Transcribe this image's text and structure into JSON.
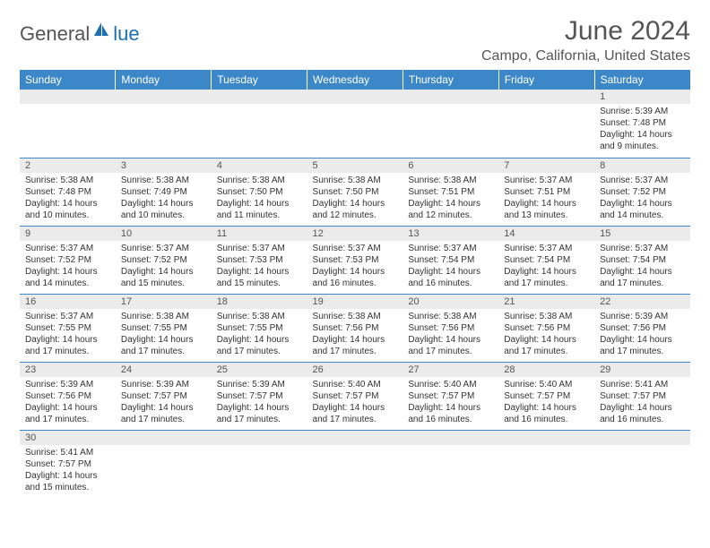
{
  "logo": {
    "part1": "General",
    "part2": "lue"
  },
  "title": "June 2024",
  "location": "Campo, California, United States",
  "colors": {
    "header_bg": "#3b87c8",
    "header_fg": "#ffffff",
    "daynum_bg": "#ebebeb",
    "text": "#333333",
    "border": "#3b87c8",
    "logo_blue": "#1a6fb5",
    "logo_gray": "#555555"
  },
  "daynames": [
    "Sunday",
    "Monday",
    "Tuesday",
    "Wednesday",
    "Thursday",
    "Friday",
    "Saturday"
  ],
  "weeks": [
    [
      {
        "n": "",
        "sr": "",
        "ss": "",
        "dl": ""
      },
      {
        "n": "",
        "sr": "",
        "ss": "",
        "dl": ""
      },
      {
        "n": "",
        "sr": "",
        "ss": "",
        "dl": ""
      },
      {
        "n": "",
        "sr": "",
        "ss": "",
        "dl": ""
      },
      {
        "n": "",
        "sr": "",
        "ss": "",
        "dl": ""
      },
      {
        "n": "",
        "sr": "",
        "ss": "",
        "dl": ""
      },
      {
        "n": "1",
        "sr": "Sunrise: 5:39 AM",
        "ss": "Sunset: 7:48 PM",
        "dl": "Daylight: 14 hours and 9 minutes."
      }
    ],
    [
      {
        "n": "2",
        "sr": "Sunrise: 5:38 AM",
        "ss": "Sunset: 7:48 PM",
        "dl": "Daylight: 14 hours and 10 minutes."
      },
      {
        "n": "3",
        "sr": "Sunrise: 5:38 AM",
        "ss": "Sunset: 7:49 PM",
        "dl": "Daylight: 14 hours and 10 minutes."
      },
      {
        "n": "4",
        "sr": "Sunrise: 5:38 AM",
        "ss": "Sunset: 7:50 PM",
        "dl": "Daylight: 14 hours and 11 minutes."
      },
      {
        "n": "5",
        "sr": "Sunrise: 5:38 AM",
        "ss": "Sunset: 7:50 PM",
        "dl": "Daylight: 14 hours and 12 minutes."
      },
      {
        "n": "6",
        "sr": "Sunrise: 5:38 AM",
        "ss": "Sunset: 7:51 PM",
        "dl": "Daylight: 14 hours and 12 minutes."
      },
      {
        "n": "7",
        "sr": "Sunrise: 5:37 AM",
        "ss": "Sunset: 7:51 PM",
        "dl": "Daylight: 14 hours and 13 minutes."
      },
      {
        "n": "8",
        "sr": "Sunrise: 5:37 AM",
        "ss": "Sunset: 7:52 PM",
        "dl": "Daylight: 14 hours and 14 minutes."
      }
    ],
    [
      {
        "n": "9",
        "sr": "Sunrise: 5:37 AM",
        "ss": "Sunset: 7:52 PM",
        "dl": "Daylight: 14 hours and 14 minutes."
      },
      {
        "n": "10",
        "sr": "Sunrise: 5:37 AM",
        "ss": "Sunset: 7:52 PM",
        "dl": "Daylight: 14 hours and 15 minutes."
      },
      {
        "n": "11",
        "sr": "Sunrise: 5:37 AM",
        "ss": "Sunset: 7:53 PM",
        "dl": "Daylight: 14 hours and 15 minutes."
      },
      {
        "n": "12",
        "sr": "Sunrise: 5:37 AM",
        "ss": "Sunset: 7:53 PM",
        "dl": "Daylight: 14 hours and 16 minutes."
      },
      {
        "n": "13",
        "sr": "Sunrise: 5:37 AM",
        "ss": "Sunset: 7:54 PM",
        "dl": "Daylight: 14 hours and 16 minutes."
      },
      {
        "n": "14",
        "sr": "Sunrise: 5:37 AM",
        "ss": "Sunset: 7:54 PM",
        "dl": "Daylight: 14 hours and 17 minutes."
      },
      {
        "n": "15",
        "sr": "Sunrise: 5:37 AM",
        "ss": "Sunset: 7:54 PM",
        "dl": "Daylight: 14 hours and 17 minutes."
      }
    ],
    [
      {
        "n": "16",
        "sr": "Sunrise: 5:37 AM",
        "ss": "Sunset: 7:55 PM",
        "dl": "Daylight: 14 hours and 17 minutes."
      },
      {
        "n": "17",
        "sr": "Sunrise: 5:38 AM",
        "ss": "Sunset: 7:55 PM",
        "dl": "Daylight: 14 hours and 17 minutes."
      },
      {
        "n": "18",
        "sr": "Sunrise: 5:38 AM",
        "ss": "Sunset: 7:55 PM",
        "dl": "Daylight: 14 hours and 17 minutes."
      },
      {
        "n": "19",
        "sr": "Sunrise: 5:38 AM",
        "ss": "Sunset: 7:56 PM",
        "dl": "Daylight: 14 hours and 17 minutes."
      },
      {
        "n": "20",
        "sr": "Sunrise: 5:38 AM",
        "ss": "Sunset: 7:56 PM",
        "dl": "Daylight: 14 hours and 17 minutes."
      },
      {
        "n": "21",
        "sr": "Sunrise: 5:38 AM",
        "ss": "Sunset: 7:56 PM",
        "dl": "Daylight: 14 hours and 17 minutes."
      },
      {
        "n": "22",
        "sr": "Sunrise: 5:39 AM",
        "ss": "Sunset: 7:56 PM",
        "dl": "Daylight: 14 hours and 17 minutes."
      }
    ],
    [
      {
        "n": "23",
        "sr": "Sunrise: 5:39 AM",
        "ss": "Sunset: 7:56 PM",
        "dl": "Daylight: 14 hours and 17 minutes."
      },
      {
        "n": "24",
        "sr": "Sunrise: 5:39 AM",
        "ss": "Sunset: 7:57 PM",
        "dl": "Daylight: 14 hours and 17 minutes."
      },
      {
        "n": "25",
        "sr": "Sunrise: 5:39 AM",
        "ss": "Sunset: 7:57 PM",
        "dl": "Daylight: 14 hours and 17 minutes."
      },
      {
        "n": "26",
        "sr": "Sunrise: 5:40 AM",
        "ss": "Sunset: 7:57 PM",
        "dl": "Daylight: 14 hours and 17 minutes."
      },
      {
        "n": "27",
        "sr": "Sunrise: 5:40 AM",
        "ss": "Sunset: 7:57 PM",
        "dl": "Daylight: 14 hours and 16 minutes."
      },
      {
        "n": "28",
        "sr": "Sunrise: 5:40 AM",
        "ss": "Sunset: 7:57 PM",
        "dl": "Daylight: 14 hours and 16 minutes."
      },
      {
        "n": "29",
        "sr": "Sunrise: 5:41 AM",
        "ss": "Sunset: 7:57 PM",
        "dl": "Daylight: 14 hours and 16 minutes."
      }
    ],
    [
      {
        "n": "30",
        "sr": "Sunrise: 5:41 AM",
        "ss": "Sunset: 7:57 PM",
        "dl": "Daylight: 14 hours and 15 minutes."
      },
      {
        "n": "",
        "sr": "",
        "ss": "",
        "dl": ""
      },
      {
        "n": "",
        "sr": "",
        "ss": "",
        "dl": ""
      },
      {
        "n": "",
        "sr": "",
        "ss": "",
        "dl": ""
      },
      {
        "n": "",
        "sr": "",
        "ss": "",
        "dl": ""
      },
      {
        "n": "",
        "sr": "",
        "ss": "",
        "dl": ""
      },
      {
        "n": "",
        "sr": "",
        "ss": "",
        "dl": ""
      }
    ]
  ]
}
